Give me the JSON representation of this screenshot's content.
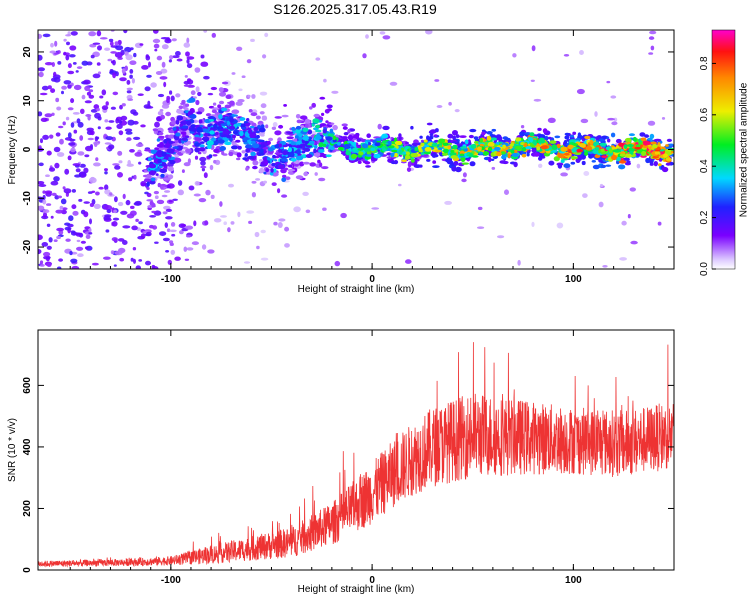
{
  "figure_title": "S126.2025.317.05.43.R19",
  "chart_data": [
    {
      "type": "heatmap",
      "title": "",
      "xlabel": "Height of straight line (km)",
      "ylabel": "Frequency (Hz)",
      "xlim": [
        -166,
        150
      ],
      "ylim": [
        -24.5,
        24.5
      ],
      "xticks": [
        -100,
        0,
        100
      ],
      "yticks": [
        -20,
        -10,
        0,
        10,
        20
      ],
      "grid": false,
      "colorbar": {
        "label": "Normalized spectral amplitude",
        "range": [
          0,
          0.93
        ],
        "ticks": [
          0.0,
          0.2,
          0.4,
          0.6,
          0.8
        ]
      },
      "ridge": [
        {
          "x": -110,
          "f": -3,
          "amp": 0.3
        },
        {
          "x": -100,
          "f": 0,
          "amp": 0.25
        },
        {
          "x": -92,
          "f": 5,
          "amp": 0.25
        },
        {
          "x": -80,
          "f": 4,
          "amp": 0.3
        },
        {
          "x": -70,
          "f": 4,
          "amp": 0.3
        },
        {
          "x": -62,
          "f": 3,
          "amp": 0.3
        },
        {
          "x": -55,
          "f": 1,
          "amp": 0.2
        },
        {
          "x": -48,
          "f": -3,
          "amp": 0.3
        },
        {
          "x": -40,
          "f": 1,
          "amp": 0.3
        },
        {
          "x": -30,
          "f": 3,
          "amp": 0.35
        },
        {
          "x": -20,
          "f": 1,
          "amp": 0.4
        },
        {
          "x": 0,
          "f": 0,
          "amp": 0.45
        },
        {
          "x": 25,
          "f": 0,
          "amp": 0.55
        },
        {
          "x": 50,
          "f": 0,
          "amp": 0.6
        },
        {
          "x": 75,
          "f": 1,
          "amp": 0.6
        },
        {
          "x": 100,
          "f": 0,
          "amp": 0.7
        },
        {
          "x": 125,
          "f": 0,
          "amp": 0.75
        },
        {
          "x": 150,
          "f": 0,
          "amp": 0.7
        }
      ]
    },
    {
      "type": "line",
      "title": "",
      "xlabel": "Height of straight line (km)",
      "ylabel": "SNR (10 * v/v)",
      "xlim": [
        -166,
        150
      ],
      "ylim": [
        0,
        780
      ],
      "xticks": [
        -100,
        0,
        100
      ],
      "yticks": [
        0,
        200,
        400,
        600
      ],
      "grid": false,
      "series": [
        {
          "color": "#ee3333",
          "trend_x": [
            -166,
            -120,
            -100,
            -80,
            -60,
            -40,
            -20,
            0,
            10,
            20,
            30,
            50,
            80,
            100,
            125,
            150
          ],
          "trend_y": [
            20,
            25,
            30,
            50,
            70,
            90,
            150,
            250,
            310,
            360,
            400,
            440,
            430,
            420,
            410,
            440
          ],
          "spread_y": [
            10,
            12,
            15,
            30,
            40,
            50,
            70,
            100,
            110,
            120,
            130,
            140,
            120,
            110,
            110,
            110
          ]
        }
      ]
    }
  ]
}
